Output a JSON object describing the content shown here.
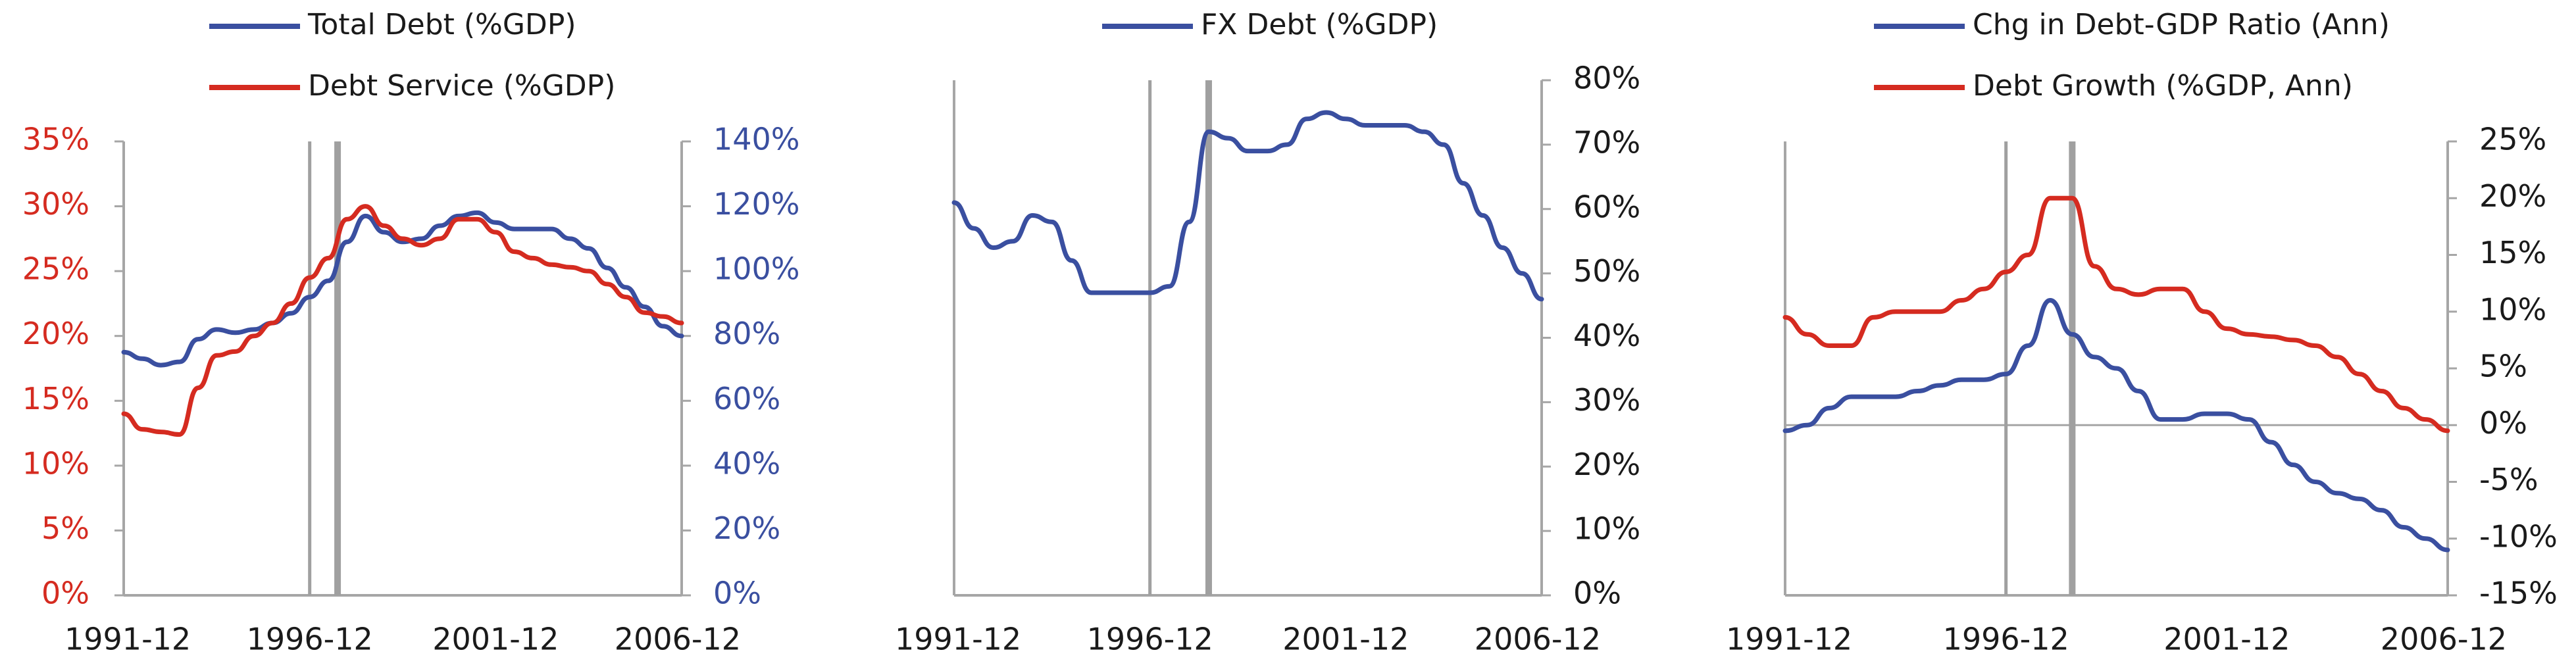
{
  "colors": {
    "blue": "#3a4fa0",
    "red": "#d52b20",
    "axis": "#a6a6a6",
    "text": "#1a1a1a",
    "vline": "#a0a0a0"
  },
  "x_ticks": [
    "1991-12",
    "1996-12",
    "2001-12",
    "2006-12"
  ],
  "chart_data": [
    {
      "type": "line",
      "x_range": [
        "1991-12",
        "2006-12"
      ],
      "x_tick_labels": [
        "1991-12",
        "1996-12",
        "2001-12",
        "2006-12"
      ],
      "y_left": {
        "lim": [
          0,
          35
        ],
        "ticks": [
          "0%",
          "5%",
          "10%",
          "15%",
          "20%",
          "25%",
          "30%",
          "35%"
        ]
      },
      "y_right": {
        "lim": [
          0,
          140
        ],
        "ticks": [
          "0%",
          "20%",
          "40%",
          "60%",
          "80%",
          "100%",
          "120%",
          "140%"
        ]
      },
      "legend": [
        "Total Debt (%GDP)",
        "Debt Service (%GDP)"
      ],
      "vlines": [
        "1996-12",
        "1997-09"
      ],
      "series": [
        {
          "name": "Total Debt (%GDP)",
          "axis": "right",
          "color": "#3a4fa0",
          "x": [
            "1991-12",
            "1992-06",
            "1992-12",
            "1993-06",
            "1993-12",
            "1994-06",
            "1994-12",
            "1995-06",
            "1995-12",
            "1996-06",
            "1996-12",
            "1997-06",
            "1997-12",
            "1998-06",
            "1998-12",
            "1999-06",
            "1999-12",
            "2000-06",
            "2000-12",
            "2001-06",
            "2001-12",
            "2002-06",
            "2002-12",
            "2003-06",
            "2003-12",
            "2004-06",
            "2004-12",
            "2005-06",
            "2005-12",
            "2006-06",
            "2006-12"
          ],
          "y": [
            75,
            73,
            71,
            72,
            79,
            82,
            81,
            82,
            84,
            87,
            92,
            97,
            109,
            117,
            112,
            109,
            110,
            114,
            117,
            118,
            115,
            113,
            113,
            113,
            110,
            107,
            101,
            95,
            89,
            83,
            80
          ]
        },
        {
          "name": "Debt Service (%GDP)",
          "axis": "left",
          "color": "#d52b20",
          "x": [
            "1991-12",
            "1992-06",
            "1992-12",
            "1993-06",
            "1993-12",
            "1994-06",
            "1994-12",
            "1995-06",
            "1995-12",
            "1996-06",
            "1996-12",
            "1997-06",
            "1997-12",
            "1998-06",
            "1998-12",
            "1999-06",
            "1999-12",
            "2000-06",
            "2000-12",
            "2001-06",
            "2001-12",
            "2002-06",
            "2002-12",
            "2003-06",
            "2003-12",
            "2004-06",
            "2004-12",
            "2005-06",
            "2005-12",
            "2006-06",
            "2006-12"
          ],
          "y": [
            14,
            12.8,
            12.6,
            12.4,
            16,
            18.5,
            18.8,
            20,
            21,
            22.5,
            24.5,
            26,
            29,
            30,
            28.5,
            27.5,
            27,
            27.5,
            29,
            29,
            28,
            26.5,
            26,
            25.5,
            25.3,
            25,
            24,
            23,
            21.8,
            21.5,
            21
          ]
        }
      ]
    },
    {
      "type": "line",
      "x_range": [
        "1991-12",
        "2006-12"
      ],
      "x_tick_labels": [
        "1991-12",
        "1996-12",
        "2001-12",
        "2006-12"
      ],
      "y_right": {
        "lim": [
          0,
          80
        ],
        "ticks": [
          "0%",
          "10%",
          "20%",
          "30%",
          "40%",
          "50%",
          "60%",
          "70%",
          "80%"
        ]
      },
      "legend": [
        "FX Debt (%GDP)"
      ],
      "vlines": [
        "1996-12",
        "1998-06"
      ],
      "series": [
        {
          "name": "FX Debt (%GDP)",
          "axis": "right",
          "color": "#3a4fa0",
          "x": [
            "1991-12",
            "1992-06",
            "1992-12",
            "1993-06",
            "1993-12",
            "1994-06",
            "1994-12",
            "1995-06",
            "1995-12",
            "1996-06",
            "1996-12",
            "1997-06",
            "1997-12",
            "1998-06",
            "1998-12",
            "1999-06",
            "1999-12",
            "2000-06",
            "2000-12",
            "2001-06",
            "2001-12",
            "2002-06",
            "2002-12",
            "2003-06",
            "2003-12",
            "2004-06",
            "2004-12",
            "2005-06",
            "2005-12",
            "2006-06",
            "2006-12"
          ],
          "y": [
            61,
            57,
            54,
            55,
            59,
            58,
            52,
            47,
            47,
            47,
            47,
            48,
            58,
            72,
            71,
            69,
            69,
            70,
            74,
            75,
            74,
            73,
            73,
            73,
            72,
            70,
            64,
            59,
            54,
            50,
            46
          ]
        }
      ]
    },
    {
      "type": "line",
      "x_range": [
        "1991-12",
        "2006-12"
      ],
      "x_tick_labels": [
        "1991-12",
        "1996-12",
        "2001-12",
        "2006-12"
      ],
      "y_right": {
        "lim": [
          -15,
          25
        ],
        "ticks": [
          "-15%",
          "-10%",
          "-5%",
          "0%",
          "5%",
          "10%",
          "15%",
          "20%",
          "25%"
        ]
      },
      "legend": [
        "Chg in Debt-GDP Ratio (Ann)",
        "Debt Growth (%GDP, Ann)"
      ],
      "vlines": [
        "1996-12",
        "1998-06"
      ],
      "series": [
        {
          "name": "Chg in Debt-GDP Ratio (Ann)",
          "axis": "right",
          "color": "#3a4fa0",
          "x": [
            "1991-12",
            "1992-06",
            "1992-12",
            "1993-06",
            "1993-12",
            "1994-06",
            "1994-12",
            "1995-06",
            "1995-12",
            "1996-06",
            "1996-12",
            "1997-06",
            "1997-12",
            "1998-06",
            "1998-12",
            "1999-06",
            "1999-12",
            "2000-06",
            "2000-12",
            "2001-06",
            "2001-12",
            "2002-06",
            "2002-12",
            "2003-06",
            "2003-12",
            "2004-06",
            "2004-12",
            "2005-06",
            "2005-12",
            "2006-06",
            "2006-12"
          ],
          "y": [
            -0.5,
            0,
            1.5,
            2.5,
            2.5,
            2.5,
            3,
            3.5,
            4,
            4,
            4.5,
            7,
            11,
            8,
            6,
            5,
            3,
            0.5,
            0.5,
            1,
            1,
            0.5,
            -1.5,
            -3.5,
            -5,
            -6,
            -6.5,
            -7.5,
            -9,
            -10,
            -11
          ]
        },
        {
          "name": "Debt Growth (%GDP, Ann)",
          "axis": "right",
          "color": "#d52b20",
          "x": [
            "1991-12",
            "1992-06",
            "1992-12",
            "1993-06",
            "1993-12",
            "1994-06",
            "1994-12",
            "1995-06",
            "1995-12",
            "1996-06",
            "1996-12",
            "1997-06",
            "1997-12",
            "1998-06",
            "1998-12",
            "1999-06",
            "1999-12",
            "2000-06",
            "2000-12",
            "2001-06",
            "2001-12",
            "2002-06",
            "2002-12",
            "2003-06",
            "2003-12",
            "2004-06",
            "2004-12",
            "2005-06",
            "2005-12",
            "2006-06",
            "2006-12"
          ],
          "y": [
            9.5,
            8,
            7,
            7,
            9.5,
            10,
            10,
            10,
            11,
            12,
            13.5,
            15,
            20,
            20,
            14,
            12,
            11.5,
            12,
            12,
            10,
            8.5,
            8,
            7.8,
            7.5,
            7,
            6,
            4.5,
            3,
            1.5,
            0.5,
            -0.5
          ]
        }
      ]
    }
  ]
}
